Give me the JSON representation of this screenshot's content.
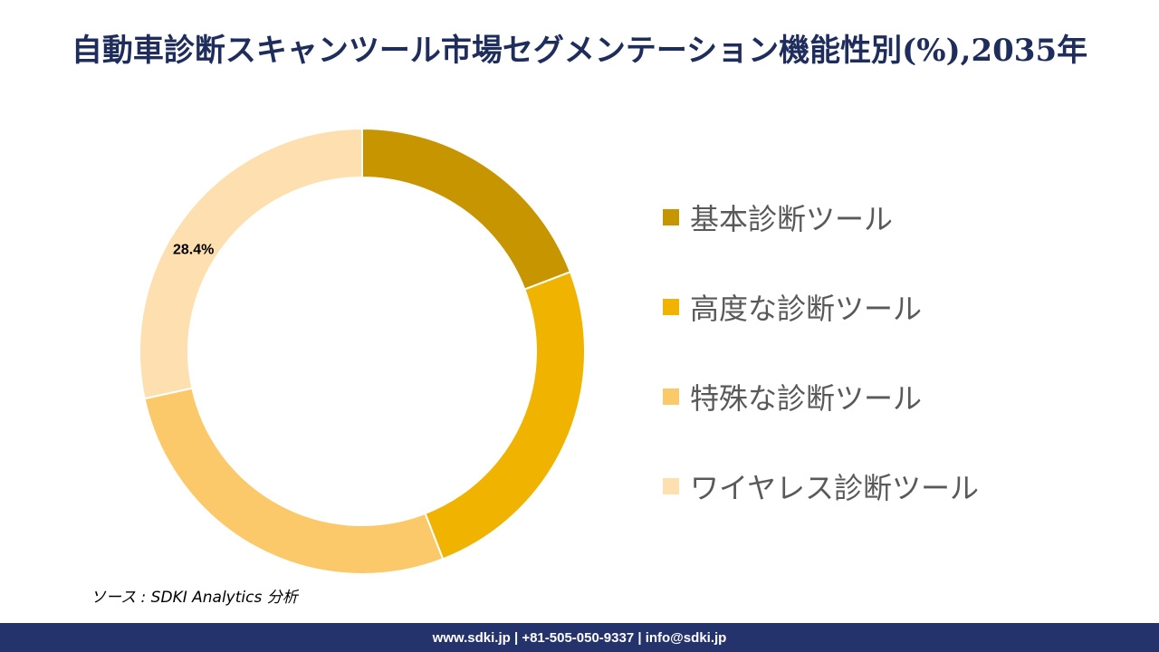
{
  "title": "自動車診断スキャンツール市場セグメンテーション機能性別(%),2035年",
  "source": "ソース : SDKI Analytics 分析",
  "footer": "www.sdki.jp | +81-505-050-9337 | info@sdki.jp",
  "chart_data": {
    "type": "pie",
    "subtype": "donut",
    "title": "自動車診断スキャンツール市場セグメンテーション機能性別(%),2035年",
    "categories": [
      "基本診断ツール",
      "高度な診断ツール",
      "特殊な診断ツール",
      "ワイヤレス診断ツール"
    ],
    "values": [
      19.2,
      24.9,
      27.5,
      28.4
    ],
    "data_labels": [
      "",
      "",
      "",
      "28.4%"
    ],
    "colors": [
      "#c69500",
      "#efb300",
      "#fcc96a",
      "#fee0b0"
    ],
    "legend_position": "right"
  }
}
